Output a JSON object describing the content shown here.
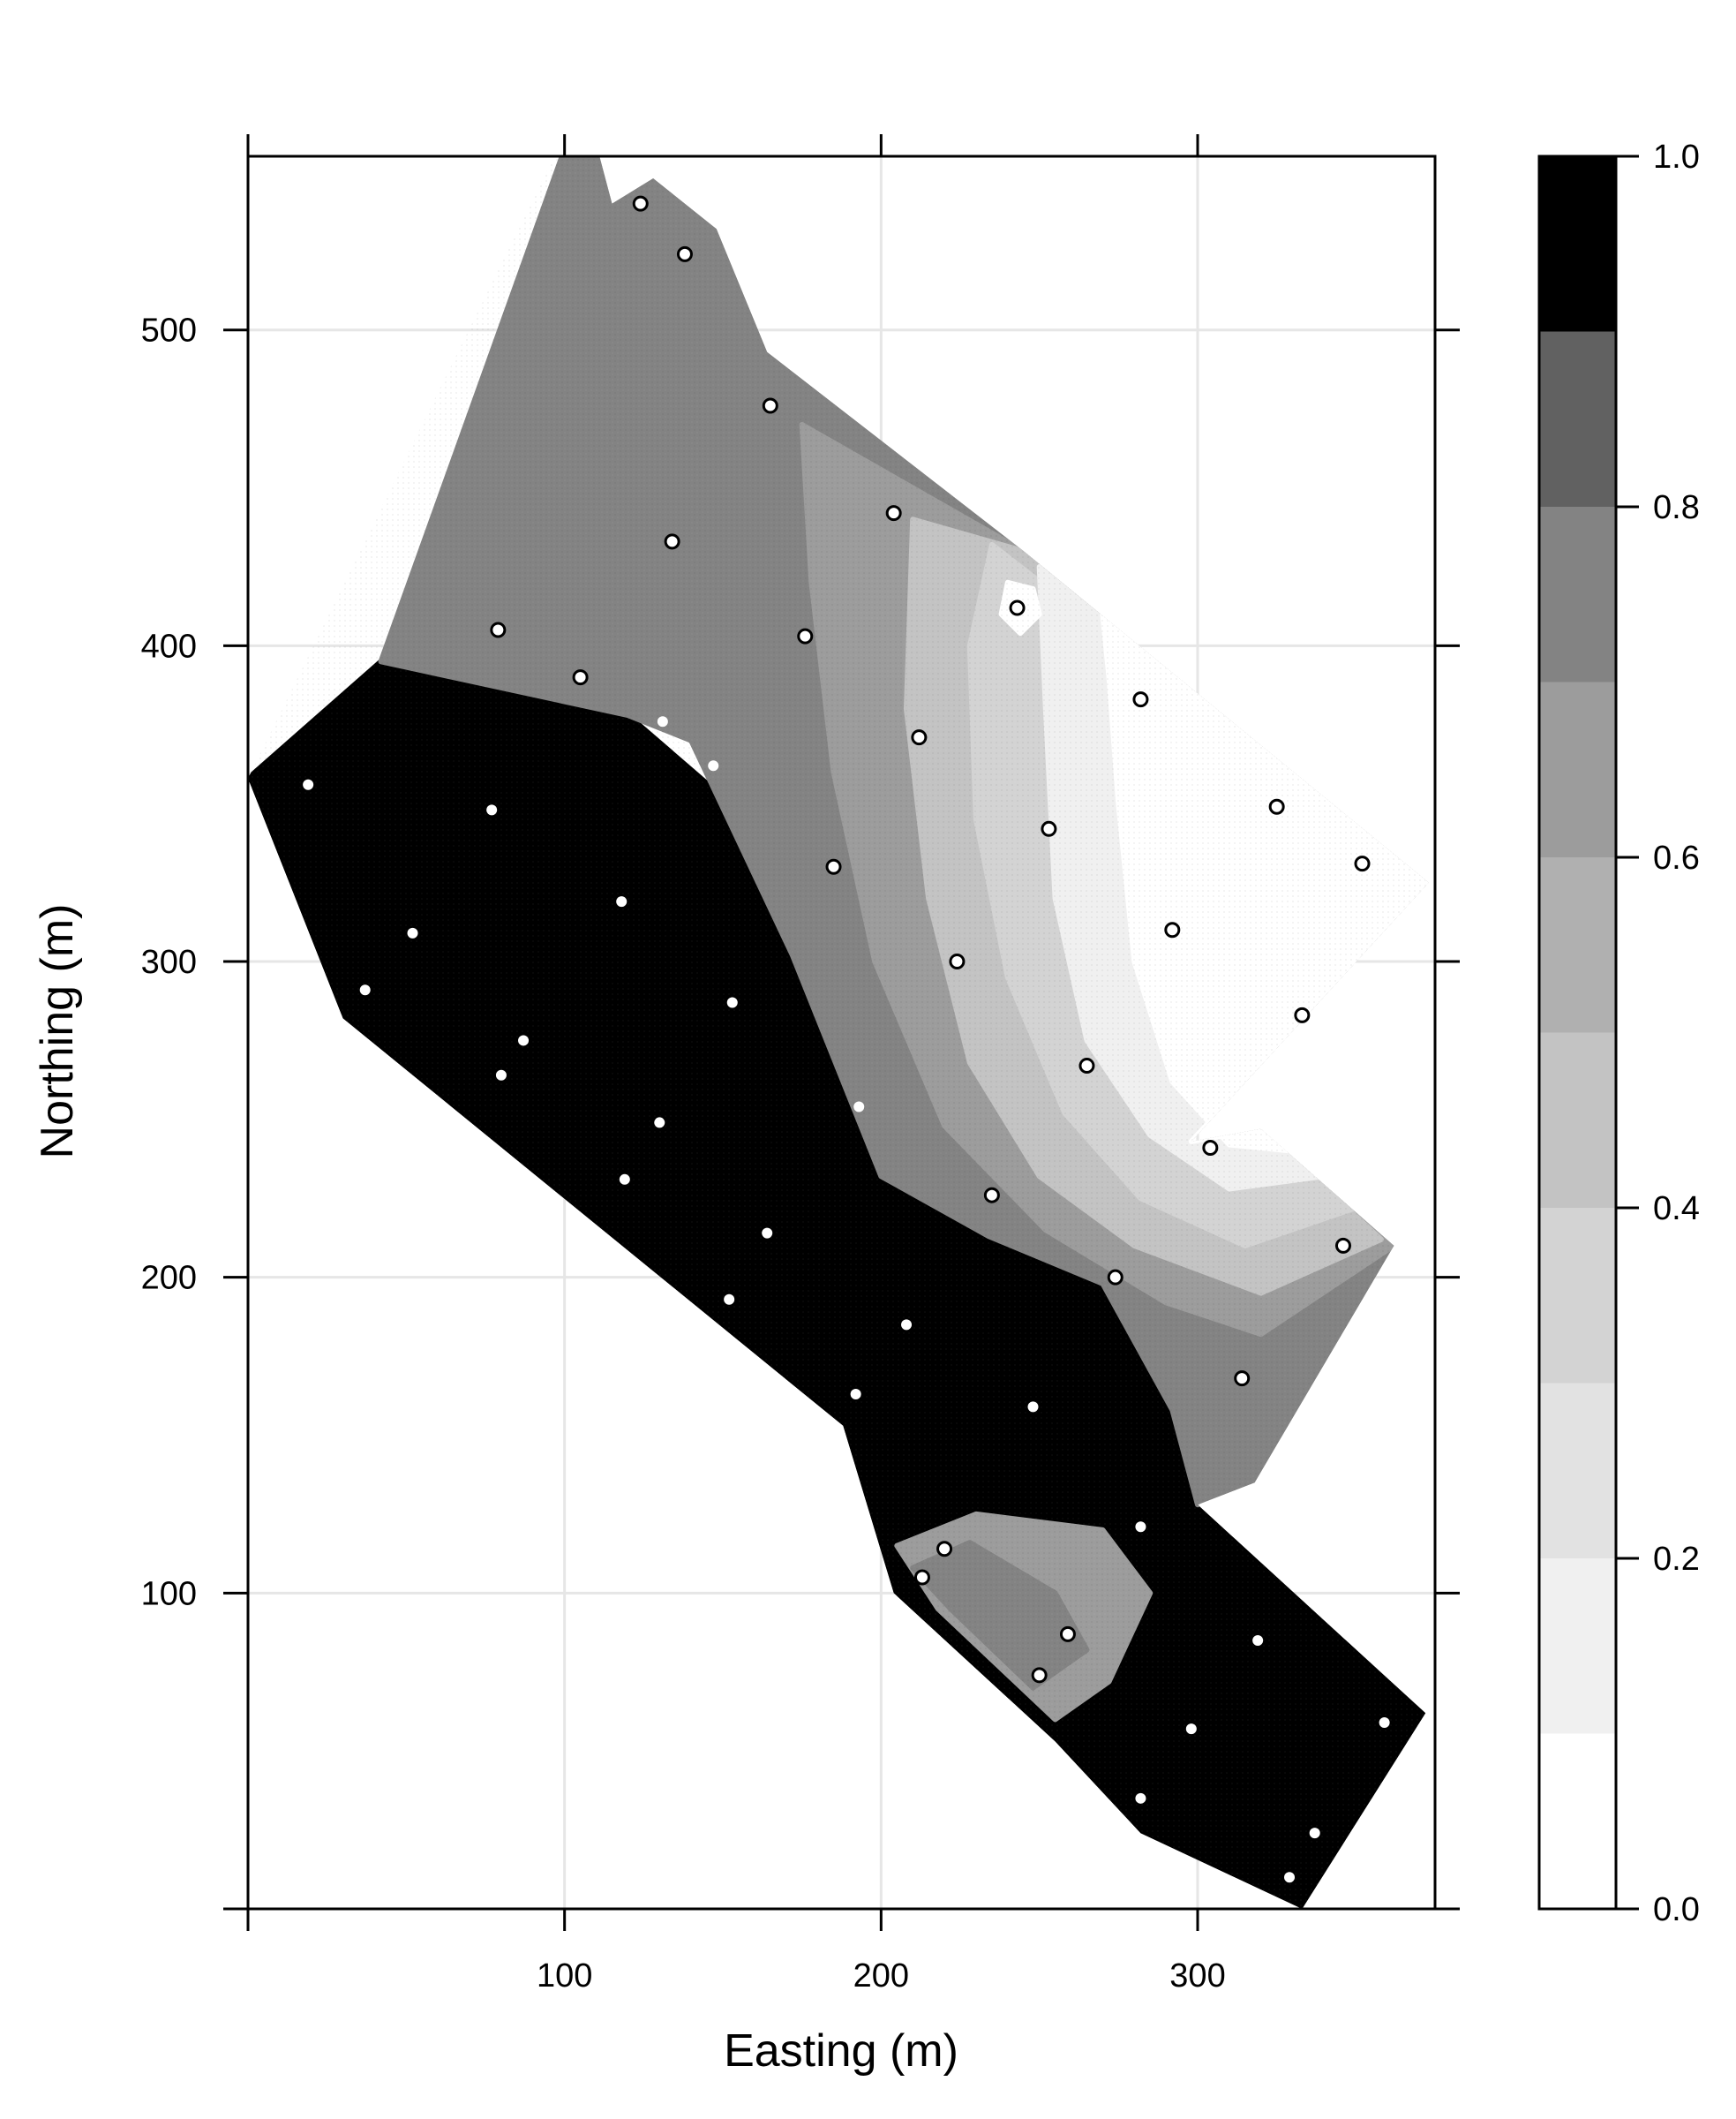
{
  "chart_data": {
    "type": "heatmap",
    "xlabel": "Easting (m)",
    "ylabel": "Northing (m)",
    "xlim": [
      0,
      375
    ],
    "ylim": [
      0,
      555
    ],
    "x_ticks": [
      100,
      200,
      300
    ],
    "y_ticks": [
      100,
      200,
      300,
      400,
      500
    ],
    "grid": true,
    "colorbar": {
      "range": [
        0,
        1
      ],
      "ticks": [
        "0.0",
        "0.2",
        "0.4",
        "0.6",
        "0.8",
        "1.0"
      ],
      "levels": [
        {
          "from": 0.0,
          "to": 0.1,
          "color": "#ffffff"
        },
        {
          "from": 0.1,
          "to": 0.2,
          "color": "#f0f0f0"
        },
        {
          "from": 0.2,
          "to": 0.3,
          "color": "#e2e2e2"
        },
        {
          "from": 0.3,
          "to": 0.4,
          "color": "#d3d3d3"
        },
        {
          "from": 0.4,
          "to": 0.5,
          "color": "#c3c3c3"
        },
        {
          "from": 0.5,
          "to": 0.6,
          "color": "#b0b0b0"
        },
        {
          "from": 0.6,
          "to": 0.7,
          "color": "#9c9c9c"
        },
        {
          "from": 0.7,
          "to": 0.8,
          "color": "#838383"
        },
        {
          "from": 0.8,
          "to": 0.9,
          "color": "#616161"
        },
        {
          "from": 0.9,
          "to": 1.0,
          "color": "#000000"
        }
      ]
    },
    "study_area_boundary": [
      [
        0,
        358
      ],
      [
        30,
        282
      ],
      [
        188,
        153
      ],
      [
        204,
        100
      ],
      [
        255,
        53
      ],
      [
        282,
        24
      ],
      [
        333,
        0
      ],
      [
        372,
        62
      ],
      [
        300,
        128
      ],
      [
        318,
        135
      ],
      [
        362,
        210
      ],
      [
        320,
        247
      ],
      [
        298,
        243
      ],
      [
        373,
        325
      ],
      [
        245,
        430
      ],
      [
        164,
        493
      ],
      [
        148,
        532
      ],
      [
        128,
        548
      ],
      [
        115,
        540
      ],
      [
        106,
        574
      ]
    ],
    "zones": [
      {
        "value": 0.95,
        "polygon": [
          [
            0,
            358
          ],
          [
            42,
            395
          ],
          [
            120,
            378
          ],
          [
            150,
            352
          ],
          [
            172,
            302
          ],
          [
            200,
            232
          ],
          [
            234,
            213
          ],
          [
            270,
            198
          ],
          [
            292,
            158
          ],
          [
            300,
            128
          ],
          [
            372,
            62
          ],
          [
            333,
            0
          ],
          [
            282,
            24
          ],
          [
            255,
            53
          ],
          [
            204,
            100
          ],
          [
            188,
            153
          ],
          [
            30,
            282
          ]
        ]
      },
      {
        "value": 0.8,
        "polygon": [
          [
            140,
            370
          ],
          [
            172,
            302
          ],
          [
            200,
            232
          ],
          [
            234,
            213
          ],
          [
            270,
            198
          ],
          [
            292,
            158
          ],
          [
            300,
            128
          ],
          [
            318,
            135
          ],
          [
            362,
            210
          ],
          [
            320,
            247
          ],
          [
            298,
            243
          ],
          [
            373,
            325
          ],
          [
            245,
            430
          ],
          [
            164,
            493
          ],
          [
            148,
            532
          ],
          [
            128,
            548
          ],
          [
            115,
            540
          ],
          [
            106,
            574
          ],
          [
            42,
            395
          ],
          [
            120,
            378
          ]
        ]
      },
      {
        "value": 0.65,
        "polygon": [
          [
            175,
            470
          ],
          [
            245,
            430
          ],
          [
            373,
            325
          ],
          [
            298,
            243
          ],
          [
            320,
            247
          ],
          [
            362,
            210
          ],
          [
            320,
            182
          ],
          [
            290,
            192
          ],
          [
            252,
            215
          ],
          [
            220,
            248
          ],
          [
            198,
            300
          ],
          [
            185,
            360
          ],
          [
            178,
            420
          ]
        ]
      },
      {
        "value": 0.5,
        "polygon": [
          [
            210,
            440
          ],
          [
            245,
            430
          ],
          [
            373,
            325
          ],
          [
            298,
            243
          ],
          [
            320,
            247
          ],
          [
            358,
            212
          ],
          [
            320,
            195
          ],
          [
            280,
            210
          ],
          [
            250,
            232
          ],
          [
            228,
            268
          ],
          [
            215,
            320
          ],
          [
            208,
            380
          ]
        ]
      },
      {
        "value": 0.35,
        "polygon": [
          [
            235,
            432
          ],
          [
            373,
            325
          ],
          [
            298,
            243
          ],
          [
            320,
            247
          ],
          [
            350,
            222
          ],
          [
            315,
            210
          ],
          [
            282,
            225
          ],
          [
            258,
            252
          ],
          [
            240,
            295
          ],
          [
            230,
            345
          ],
          [
            228,
            400
          ]
        ]
      },
      {
        "value": 0.2,
        "polygon": [
          [
            250,
            425
          ],
          [
            373,
            325
          ],
          [
            298,
            243
          ],
          [
            320,
            247
          ],
          [
            340,
            232
          ],
          [
            310,
            228
          ],
          [
            285,
            245
          ],
          [
            265,
            275
          ],
          [
            255,
            320
          ],
          [
            252,
            380
          ]
        ]
      },
      {
        "value": 0.1,
        "polygon": [
          [
            270,
            410
          ],
          [
            373,
            325
          ],
          [
            298,
            243
          ],
          [
            320,
            247
          ],
          [
            330,
            240
          ],
          [
            310,
            242
          ],
          [
            292,
            262
          ],
          [
            280,
            300
          ],
          [
            275,
            350
          ],
          [
            272,
            390
          ]
        ]
      },
      {
        "value": 0.05,
        "polygon": [
          [
            240,
            420
          ],
          [
            248,
            418
          ],
          [
            250,
            410
          ],
          [
            244,
            404
          ],
          [
            238,
            410
          ]
        ]
      },
      {
        "value": 0.65,
        "polygon": [
          [
            205,
            115
          ],
          [
            230,
            125
          ],
          [
            270,
            120
          ],
          [
            285,
            100
          ],
          [
            272,
            72
          ],
          [
            255,
            60
          ],
          [
            218,
            95
          ]
        ]
      },
      {
        "value": 0.75,
        "polygon": [
          [
            210,
            108
          ],
          [
            228,
            116
          ],
          [
            255,
            100
          ],
          [
            265,
            82
          ],
          [
            248,
            70
          ],
          [
            222,
            95
          ]
        ]
      }
    ],
    "sample_points_open": [
      [
        124,
        540
      ],
      [
        138,
        524
      ],
      [
        165,
        476
      ],
      [
        204,
        442
      ],
      [
        134,
        433
      ],
      [
        243,
        412
      ],
      [
        79,
        405
      ],
      [
        176,
        403
      ],
      [
        105,
        390
      ],
      [
        282,
        383
      ],
      [
        212,
        371
      ],
      [
        325,
        349
      ],
      [
        253,
        342
      ],
      [
        352,
        331
      ],
      [
        185,
        330
      ],
      [
        292,
        310
      ],
      [
        224,
        300
      ],
      [
        333,
        283
      ],
      [
        265,
        267
      ],
      [
        304,
        241
      ],
      [
        235,
        226
      ],
      [
        346,
        210
      ],
      [
        274,
        200
      ],
      [
        314,
        168
      ],
      [
        220,
        114
      ],
      [
        213,
        105
      ],
      [
        259,
        87
      ],
      [
        250,
        74
      ]
    ],
    "sample_points_filled": [
      [
        19,
        356
      ],
      [
        131,
        376
      ],
      [
        147,
        362
      ],
      [
        77,
        348
      ],
      [
        118,
        319
      ],
      [
        52,
        309
      ],
      [
        37,
        291
      ],
      [
        153,
        287
      ],
      [
        87,
        275
      ],
      [
        80,
        264
      ],
      [
        193,
        254
      ],
      [
        130,
        249
      ],
      [
        119,
        231
      ],
      [
        164,
        214
      ],
      [
        152,
        193
      ],
      [
        208,
        185
      ],
      [
        192,
        163
      ],
      [
        248,
        159
      ],
      [
        282,
        121
      ],
      [
        319,
        85
      ],
      [
        298,
        57
      ],
      [
        359,
        59
      ],
      [
        282,
        35
      ],
      [
        337,
        24
      ],
      [
        329,
        10
      ]
    ]
  }
}
